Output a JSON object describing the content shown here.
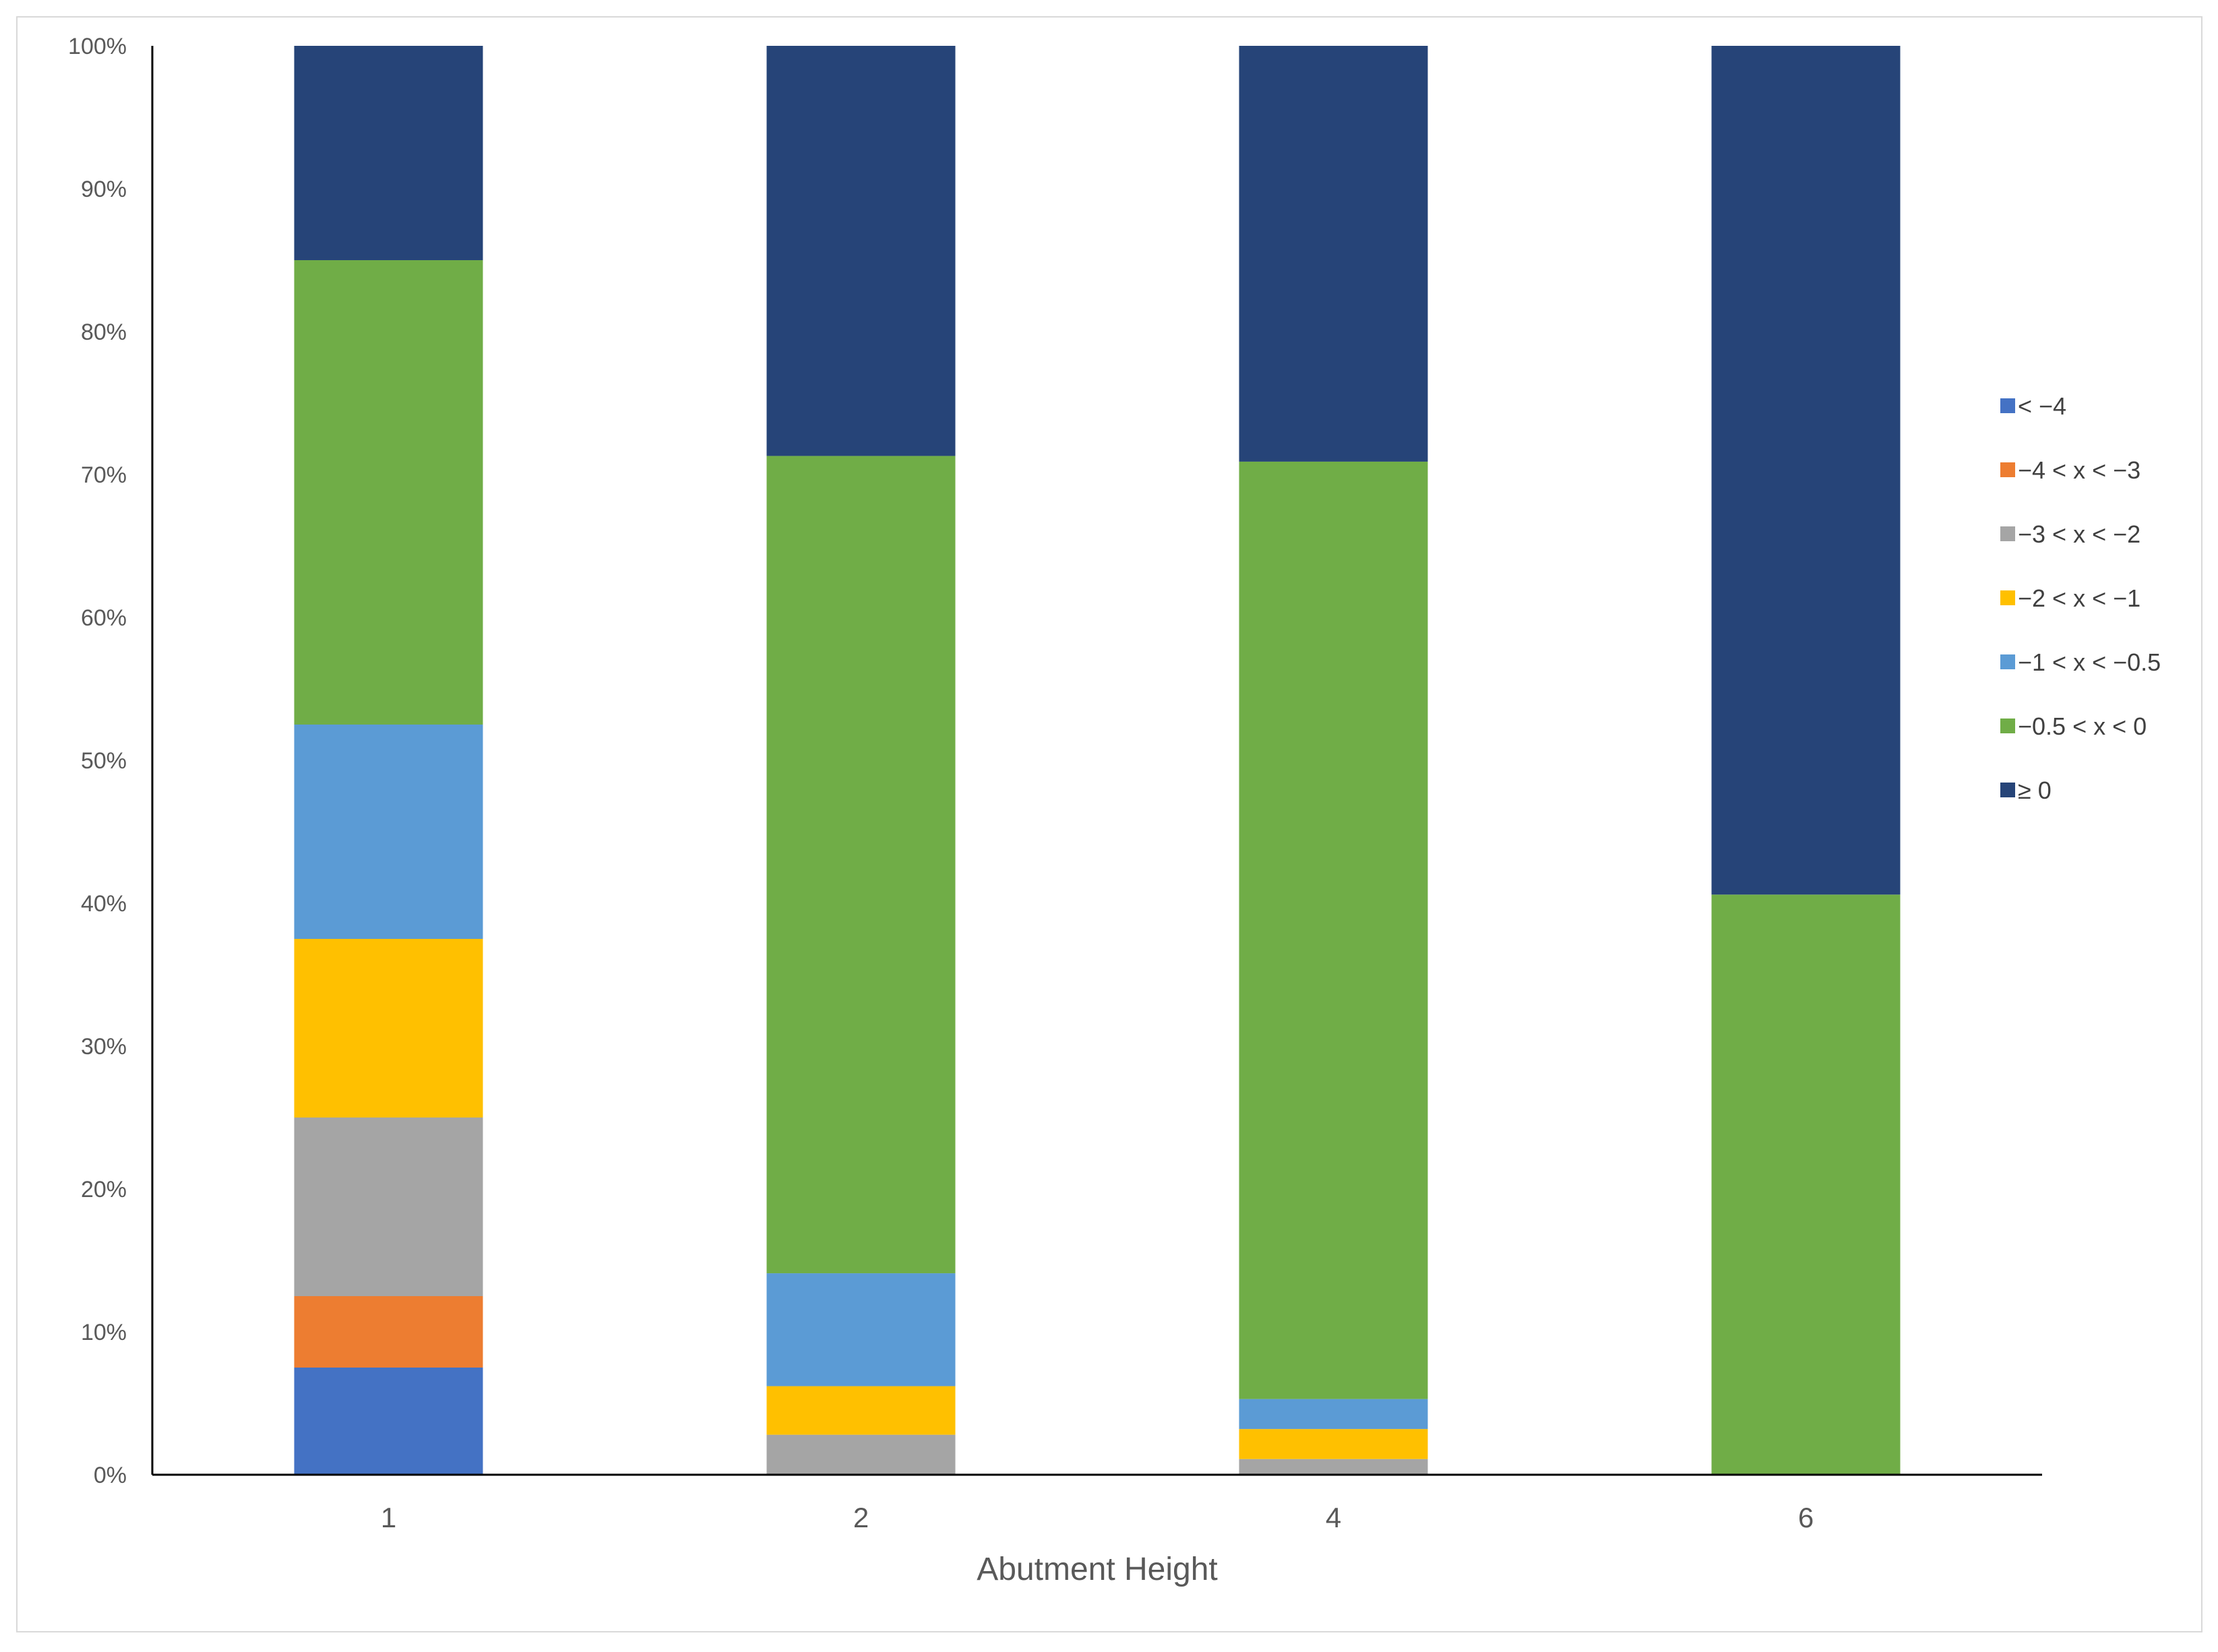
{
  "chart_data": {
    "type": "bar",
    "stacked": true,
    "percent_stacked": true,
    "categories": [
      "1",
      "2",
      "4",
      "6"
    ],
    "xlabel": "Abutment Height",
    "ylabel": "",
    "title": "",
    "ylim": [
      0,
      100
    ],
    "y_ticks": [
      "0%",
      "10%",
      "20%",
      "30%",
      "40%",
      "50%",
      "60%",
      "70%",
      "80%",
      "90%",
      "100%"
    ],
    "grid": false,
    "legend_position": "right",
    "series": [
      {
        "name": "< −4",
        "color": "#4472C4",
        "values": [
          7.5,
          0,
          0,
          0
        ]
      },
      {
        "name": "−4 < x < −3",
        "color": "#ED7D31",
        "values": [
          5,
          0,
          0,
          0
        ]
      },
      {
        "name": "−3 < x < −2",
        "color": "#A5A5A5",
        "values": [
          12.5,
          2.8,
          1.1,
          0
        ]
      },
      {
        "name": "−2 < x < −1",
        "color": "#FFC000",
        "values": [
          12.5,
          3.4,
          2.1,
          0
        ]
      },
      {
        "name": "−1 < x < −0.5",
        "color": "#5B9BD5",
        "values": [
          15,
          7.9,
          2.1,
          0
        ]
      },
      {
        "name": "−0.5 < x < 0",
        "color": "#70AD47",
        "values": [
          32.5,
          57.2,
          65.6,
          40.6
        ]
      },
      {
        "name": "≥ 0",
        "color": "#264478",
        "values": [
          15,
          28.7,
          29.1,
          59.4
        ]
      }
    ]
  }
}
